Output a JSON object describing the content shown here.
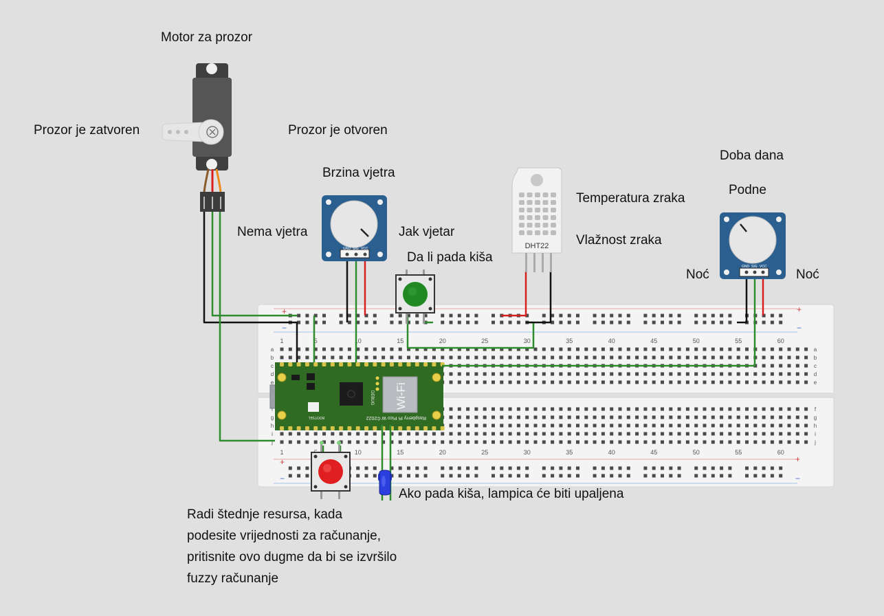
{
  "labels": {
    "motor": "Motor za prozor",
    "closed": "Prozor je zatvoren",
    "open": "Prozor je otvoren",
    "wind_speed": "Brzina vjetra",
    "no_wind": "Nema vjetra",
    "strong_wind": "Jak vjetar",
    "rain_question": "Da li pada kiša",
    "temperature": "Temperatura zraka",
    "humidity": "Vlažnost zraka",
    "time_of_day": "Doba dana",
    "noon": "Podne",
    "night_left": "Noć",
    "night_right": "Noć",
    "led_note": "Ako pada kiša, lampica će biti upaljena"
  },
  "note_lines": [
    "Radi štednje resursa, kada",
    "podesite vrijednosti za računanje,",
    "pritisnite ovo dugme da bi se izvršilo",
    "fuzzy računanje"
  ],
  "sensor": {
    "name": "DHT22"
  },
  "pot_pins": [
    "GND",
    "SIG",
    "VCC"
  ],
  "pico": {
    "wifi": "Wi-Fi",
    "debug": "DEBUG",
    "bootsel": "BOOTSEL",
    "model": "Raspberry Pi Pico W ©2022"
  },
  "breadboard": {
    "columns_top": [
      "1",
      "5",
      "10",
      "15",
      "20",
      "25",
      "30",
      "35",
      "40",
      "45",
      "50",
      "55",
      "60"
    ],
    "columns_bottom": [
      "1",
      "5",
      "10",
      "15",
      "20",
      "25",
      "30",
      "35",
      "40",
      "45",
      "50",
      "55",
      "60"
    ],
    "rows_top": [
      "a",
      "b",
      "c",
      "d",
      "e"
    ],
    "rows_bottom": [
      "f",
      "g",
      "h",
      "i",
      "j"
    ],
    "plus": "+",
    "minus": "−"
  },
  "colors": {
    "background": "#e0e0e0",
    "wire_green": "#2e8b2e",
    "wire_black": "#111111",
    "wire_red": "#d92020",
    "pico_green": "#2f6b22",
    "pot_blue": "#2a5f8f",
    "button_red": "#e02020",
    "button_green": "#228822",
    "led_blue": "#2233cc"
  }
}
